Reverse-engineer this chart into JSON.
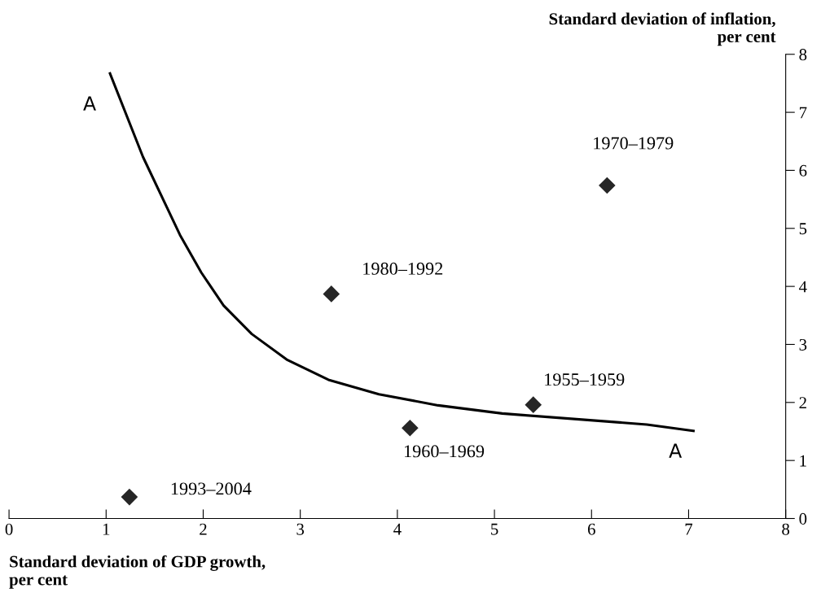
{
  "chart_data": {
    "type": "scatter",
    "xlabel": "Standard deviation of GDP growth,\nper cent",
    "ylabel": "Standard deviation of inflation,\nper cent",
    "xlim": [
      0,
      8
    ],
    "xticks": [
      0,
      1,
      2,
      3,
      4,
      5,
      6,
      7,
      8
    ],
    "ylim": [
      0,
      8
    ],
    "yticks": [
      0,
      1,
      2,
      3,
      4,
      5,
      6,
      7,
      8
    ],
    "grid": false,
    "legend": false,
    "series": [
      {
        "type": "line",
        "color": "#000000",
        "marker": "none",
        "line_style": "solid",
        "x": [
          1.04,
          1.38,
          1.76,
          1.98,
          2.21,
          2.5,
          2.86,
          3.29,
          3.81,
          4.42,
          5.08,
          6.57,
          7.05
        ],
        "values": [
          7.67,
          6.23,
          4.89,
          4.24,
          3.67,
          3.18,
          2.74,
          2.39,
          2.14,
          1.95,
          1.81,
          1.62,
          1.51
        ]
      },
      {
        "color": "#262626",
        "marker": "diamond",
        "x": [
          1.24,
          4.13,
          5.4,
          3.32,
          6.16
        ],
        "values": [
          0.37,
          1.56,
          1.96,
          3.87,
          5.74
        ]
      }
    ],
    "annotations": [
      {
        "text": "A",
        "x": 1.04,
        "y": 7.67
      },
      {
        "text": "A",
        "x": 7.05,
        "y": 1.51
      },
      {
        "text": "1993–2004",
        "x": 1.24,
        "y": 0.37
      },
      {
        "text": "1960–1969",
        "x": 4.13,
        "y": 1.56
      },
      {
        "text": "1955–1959",
        "x": 5.4,
        "y": 1.96
      },
      {
        "text": "1980–1992",
        "x": 3.32,
        "y": 3.87
      },
      {
        "text": "1970–1979",
        "x": 6.16,
        "y": 5.74
      }
    ]
  }
}
